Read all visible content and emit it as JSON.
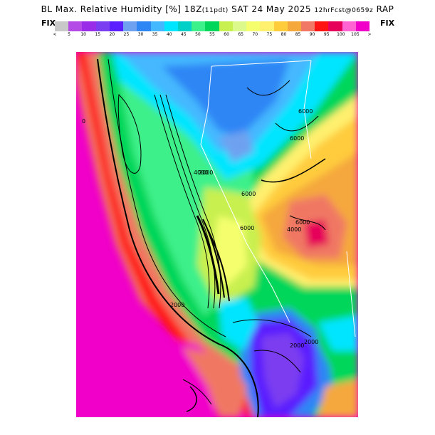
{
  "header": {
    "title_main": "BL Max. Relative Humidity [%] 18Z",
    "title_paren": "(11pdt)",
    "title_date": "SAT 24 May 2025",
    "title_fcst": "12hrFcst@0659z",
    "title_model": "RAP",
    "fix_left": "FIX",
    "fix_right": "FIX"
  },
  "legend": {
    "colors": [
      "#c8c8c8",
      "#b44be6",
      "#9a2ee8",
      "#7b3ef0",
      "#5a1eff",
      "#6ea2f0",
      "#2e86f5",
      "#44b8ff",
      "#00e5ff",
      "#00d0c8",
      "#3cf08a",
      "#00d75a",
      "#c8f050",
      "#dcfa8c",
      "#f5ff6e",
      "#fff06e",
      "#ffcc3c",
      "#f5a83c",
      "#f07864",
      "#ff1414",
      "#e6005a",
      "#ff64d2",
      "#f000c8"
    ],
    "tick_labels": [
      "<",
      "5",
      "10",
      "15",
      "20",
      "25",
      "30",
      "35",
      "40",
      "45",
      "50",
      "55",
      "60",
      "65",
      "70",
      "75",
      "80",
      "85",
      "90",
      "95",
      "100",
      "105",
      ">"
    ]
  },
  "map": {
    "contour_labels": [
      "6000",
      "6000",
      "6000",
      "6000",
      "6000",
      "4000",
      "4000",
      "2000",
      "2000",
      "2000",
      "2000",
      "0"
    ]
  }
}
